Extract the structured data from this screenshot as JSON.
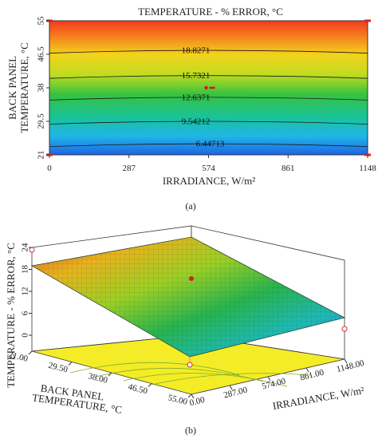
{
  "chart_data": [
    {
      "type": "contour",
      "panel_label": "(a)",
      "title": "TEMPERATURE - % ERROR, °C",
      "xlabel": "IRRADIANCE, W/m²",
      "ylabel_line1": "BACK PANEL",
      "ylabel_line2": "TEMPERATURE, °C",
      "x_ticks": [
        "0",
        "287",
        "574",
        "861",
        "1148"
      ],
      "y_ticks": [
        "21",
        "29.5",
        "38",
        "46.5",
        "55"
      ],
      "xlim": [
        0,
        1148
      ],
      "ylim": [
        21,
        55
      ],
      "contour_levels": [
        "6.44713",
        "9.54212",
        "12.6371",
        "15.7321",
        "18.8271"
      ],
      "center_point": {
        "x": 574,
        "y": 38
      },
      "design_points": [
        {
          "x": 0,
          "y": 21
        },
        {
          "x": 0,
          "y": 55
        },
        {
          "x": 1148,
          "y": 21
        },
        {
          "x": 1148,
          "y": 55
        }
      ],
      "colors": {
        "low": "#1e64e6",
        "mid": "#1ec850",
        "high": "#f03c1e"
      }
    },
    {
      "type": "surface3d",
      "panel_label": "(b)",
      "zlabel": "TEMPERATURE - % ERROR, °C",
      "x_axis_label": "IRRADIANCE, W/m²",
      "y_axis_label_line1": "BACK PANEL",
      "y_axis_label_line2": "TEMPERATURE, °C",
      "z_ticks": [
        "0",
        "6",
        "12",
        "18",
        "24"
      ],
      "irradiance_ticks": [
        "0.00",
        "287.00",
        "574.00",
        "861.00",
        "1148.00"
      ],
      "temperature_ticks": [
        "21.00",
        "29.50",
        "38.00",
        "46.50",
        "55.00"
      ],
      "zlim": [
        0,
        24
      ],
      "corner_values": [
        {
          "irradiance": 0,
          "temperature": 55,
          "error": 20.5
        },
        {
          "irradiance": 1148,
          "temperature": 55,
          "error": 24
        },
        {
          "irradiance": 0,
          "temperature": 21,
          "error": 5
        },
        {
          "irradiance": 1148,
          "temperature": 21,
          "error": 3
        }
      ],
      "center_point": {
        "irradiance": 574,
        "temperature": 38,
        "error": 12.6
      }
    }
  ]
}
